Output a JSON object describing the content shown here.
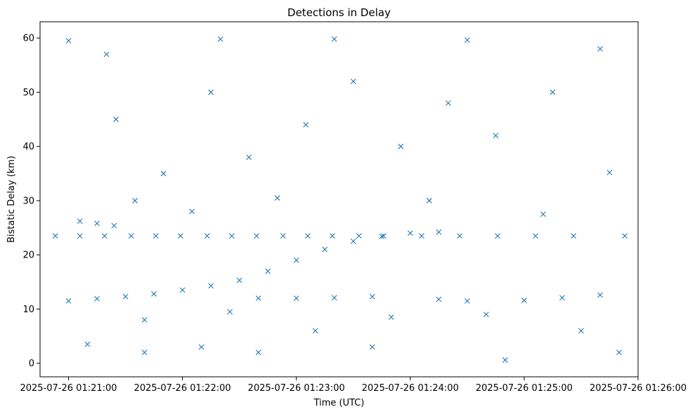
{
  "chart_data": {
    "type": "scatter",
    "title": "Detections in Delay",
    "xlabel": "Time (UTC)",
    "ylabel": "Bistatic Delay (km)",
    "grid": false,
    "marker": "x",
    "marker_color": "#1f77b4",
    "xlim": [
      "2025-07-26 01:20:45",
      "2025-07-26 01:26:00"
    ],
    "ylim": [
      -2.5,
      63
    ],
    "x_ticks": [
      "2025-07-26 01:21:00",
      "2025-07-26 01:22:00",
      "2025-07-26 01:23:00",
      "2025-07-26 01:24:00",
      "2025-07-26 01:25:00",
      "2025-07-26 01:26:00"
    ],
    "y_ticks": [
      "0",
      "10",
      "20",
      "30",
      "40",
      "50",
      "60"
    ],
    "x_start": "2025-07-26 01:20:53",
    "x_end": "2025-07-26 01:25:53",
    "series": [
      {
        "values": [
          {
            "x": "2025-07-26 01:20:53",
            "y": 23.5
          },
          {
            "x": "2025-07-26 01:21:06",
            "y": 23.5
          },
          {
            "x": "2025-07-26 01:21:19",
            "y": 23.5
          },
          {
            "x": "2025-07-26 01:21:33",
            "y": 23.5
          },
          {
            "x": "2025-07-26 01:21:46",
            "y": 23.5
          },
          {
            "x": "2025-07-26 01:21:59",
            "y": 23.5
          },
          {
            "x": "2025-07-26 01:22:13",
            "y": 23.5
          },
          {
            "x": "2025-07-26 01:22:26",
            "y": 23.5
          },
          {
            "x": "2025-07-26 01:22:39",
            "y": 23.5
          },
          {
            "x": "2025-07-26 01:22:53",
            "y": 23.5
          },
          {
            "x": "2025-07-26 01:23:06",
            "y": 23.5
          },
          {
            "x": "2025-07-26 01:23:19",
            "y": 23.5
          },
          {
            "x": "2025-07-26 01:23:33",
            "y": 23.5
          },
          {
            "x": "2025-07-26 01:23:46",
            "y": 23.5
          },
          {
            "x": "2025-07-26 01:24:06",
            "y": 23.5
          },
          {
            "x": "2025-07-26 01:24:26",
            "y": 23.5
          },
          {
            "x": "2025-07-26 01:24:46",
            "y": 23.5
          },
          {
            "x": "2025-07-26 01:25:06",
            "y": 23.5
          },
          {
            "x": "2025-07-26 01:25:26",
            "y": 23.5
          },
          {
            "x": "2025-07-26 01:25:53",
            "y": 23.5
          },
          {
            "x": "2025-07-26 01:21:00",
            "y": 11.5
          },
          {
            "x": "2025-07-26 01:21:15",
            "y": 11.9
          },
          {
            "x": "2025-07-26 01:21:30",
            "y": 12.3
          },
          {
            "x": "2025-07-26 01:21:45",
            "y": 12.8
          },
          {
            "x": "2025-07-26 01:22:00",
            "y": 13.5
          },
          {
            "x": "2025-07-26 01:22:15",
            "y": 14.3
          },
          {
            "x": "2025-07-26 01:22:30",
            "y": 15.3
          },
          {
            "x": "2025-07-26 01:22:45",
            "y": 17.0
          },
          {
            "x": "2025-07-26 01:23:00",
            "y": 19.0
          },
          {
            "x": "2025-07-26 01:23:15",
            "y": 21.0
          },
          {
            "x": "2025-07-26 01:23:30",
            "y": 22.5
          },
          {
            "x": "2025-07-26 01:23:45",
            "y": 23.4
          },
          {
            "x": "2025-07-26 01:24:00",
            "y": 24.0
          },
          {
            "x": "2025-07-26 01:24:15",
            "y": 24.2
          },
          {
            "x": "2025-07-26 01:21:06",
            "y": 26.2
          },
          {
            "x": "2025-07-26 01:21:15",
            "y": 25.8
          },
          {
            "x": "2025-07-26 01:21:24",
            "y": 25.4
          },
          {
            "x": "2025-07-26 01:22:40",
            "y": 12.0
          },
          {
            "x": "2025-07-26 01:23:00",
            "y": 12.0
          },
          {
            "x": "2025-07-26 01:23:20",
            "y": 12.1
          },
          {
            "x": "2025-07-26 01:23:40",
            "y": 12.3
          },
          {
            "x": "2025-07-26 01:24:15",
            "y": 11.8
          },
          {
            "x": "2025-07-26 01:24:30",
            "y": 11.5
          },
          {
            "x": "2025-07-26 01:25:00",
            "y": 11.6
          },
          {
            "x": "2025-07-26 01:25:20",
            "y": 12.1
          },
          {
            "x": "2025-07-26 01:25:40",
            "y": 12.6
          },
          {
            "x": "2025-07-26 01:21:00",
            "y": 59.5
          },
          {
            "x": "2025-07-26 01:21:20",
            "y": 57.0
          },
          {
            "x": "2025-07-26 01:22:20",
            "y": 59.8
          },
          {
            "x": "2025-07-26 01:23:20",
            "y": 59.8
          },
          {
            "x": "2025-07-26 01:24:30",
            "y": 59.6
          },
          {
            "x": "2025-07-26 01:25:40",
            "y": 58.0
          },
          {
            "x": "2025-07-26 01:21:10",
            "y": 3.5
          },
          {
            "x": "2025-07-26 01:21:40",
            "y": 2.0
          },
          {
            "x": "2025-07-26 01:22:10",
            "y": 3.0
          },
          {
            "x": "2025-07-26 01:22:40",
            "y": 2.0
          },
          {
            "x": "2025-07-26 01:23:40",
            "y": 3.0
          },
          {
            "x": "2025-07-26 01:24:50",
            "y": 0.6
          },
          {
            "x": "2025-07-26 01:25:50",
            "y": 2.0
          },
          {
            "x": "2025-07-26 01:21:25",
            "y": 45.0
          },
          {
            "x": "2025-07-26 01:21:50",
            "y": 35.0
          },
          {
            "x": "2025-07-26 01:22:15",
            "y": 50.0
          },
          {
            "x": "2025-07-26 01:22:35",
            "y": 38.0
          },
          {
            "x": "2025-07-26 01:23:05",
            "y": 44.0
          },
          {
            "x": "2025-07-26 01:23:30",
            "y": 52.0
          },
          {
            "x": "2025-07-26 01:23:55",
            "y": 40.0
          },
          {
            "x": "2025-07-26 01:24:20",
            "y": 48.0
          },
          {
            "x": "2025-07-26 01:24:45",
            "y": 42.0
          },
          {
            "x": "2025-07-26 01:25:15",
            "y": 50.0
          },
          {
            "x": "2025-07-26 01:25:45",
            "y": 35.2
          },
          {
            "x": "2025-07-26 01:21:35",
            "y": 30.0
          },
          {
            "x": "2025-07-26 01:22:05",
            "y": 28.0
          },
          {
            "x": "2025-07-26 01:22:50",
            "y": 30.5
          },
          {
            "x": "2025-07-26 01:24:10",
            "y": 30.0
          },
          {
            "x": "2025-07-26 01:25:10",
            "y": 27.5
          },
          {
            "x": "2025-07-26 01:21:40",
            "y": 8.0
          },
          {
            "x": "2025-07-26 01:22:25",
            "y": 9.5
          },
          {
            "x": "2025-07-26 01:23:10",
            "y": 6.0
          },
          {
            "x": "2025-07-26 01:23:50",
            "y": 8.5
          },
          {
            "x": "2025-07-26 01:24:40",
            "y": 9.0
          },
          {
            "x": "2025-07-26 01:25:30",
            "y": 6.0
          }
        ]
      }
    ]
  }
}
